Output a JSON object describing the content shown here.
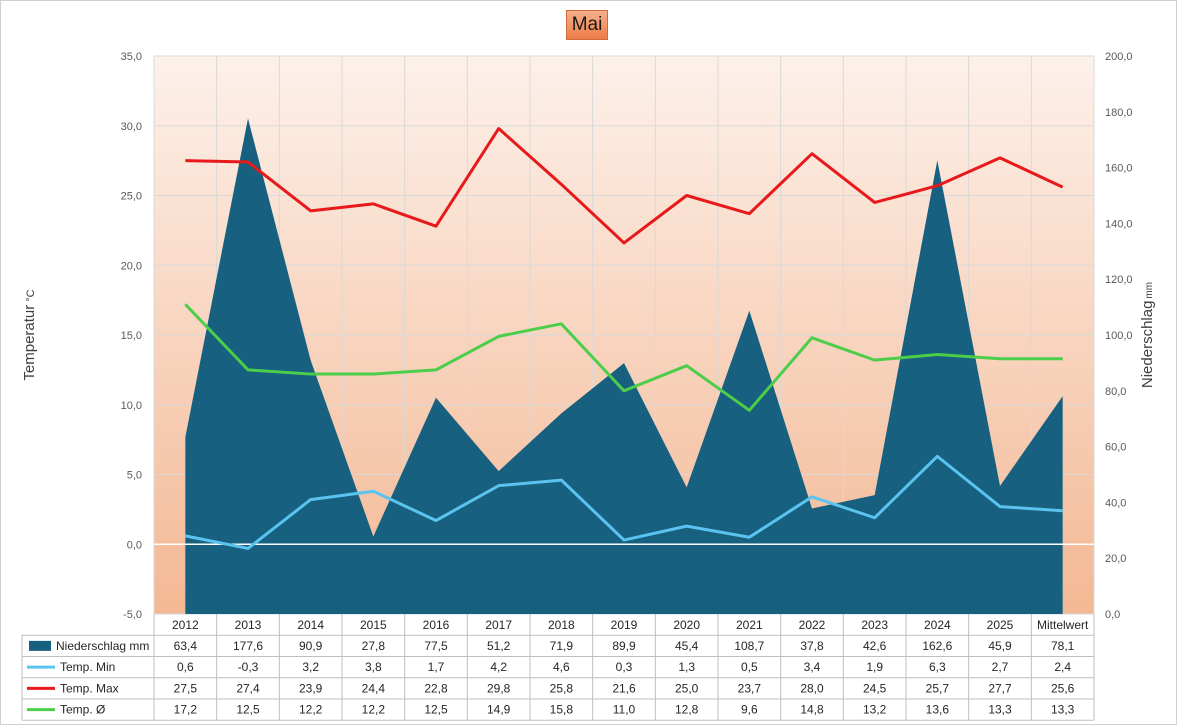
{
  "chart_data": {
    "type": "area+line",
    "title": "Mai",
    "categories": [
      "2012",
      "2013",
      "2014",
      "2015",
      "2016",
      "2017",
      "2018",
      "2019",
      "2020",
      "2021",
      "2022",
      "2023",
      "2024",
      "2025",
      "Mittelwert"
    ],
    "left_axis": {
      "label": "Temperatur",
      "unit": "°C",
      "ylim": [
        -5,
        35
      ],
      "ticks": [
        "-5,0",
        "0,0",
        "5,0",
        "10,0",
        "15,0",
        "20,0",
        "25,0",
        "30,0",
        "35,0"
      ]
    },
    "right_axis": {
      "label": "Niederschlag",
      "unit": "mm",
      "ylim": [
        0,
        200
      ],
      "ticks": [
        "0,0",
        "20,0",
        "40,0",
        "60,0",
        "80,0",
        "100,0",
        "120,0",
        "140,0",
        "160,0",
        "180,0",
        "200,0"
      ]
    },
    "grid": true,
    "series": [
      {
        "name": "Niederschlag mm",
        "type": "area",
        "axis": "right",
        "color": "#17607f",
        "values": [
          63.4,
          177.6,
          90.9,
          27.8,
          77.5,
          51.2,
          71.9,
          89.9,
          45.4,
          108.7,
          37.8,
          42.6,
          162.6,
          45.9,
          78.1
        ],
        "labels": [
          "63,4",
          "177,6",
          "90,9",
          "27,8",
          "77,5",
          "51,2",
          "71,9",
          "89,9",
          "45,4",
          "108,7",
          "37,8",
          "42,6",
          "162,6",
          "45,9",
          "78,1"
        ]
      },
      {
        "name": "Temp. Min",
        "type": "line",
        "axis": "left",
        "color": "#5bc3f0",
        "values": [
          0.6,
          -0.3,
          3.2,
          3.8,
          1.7,
          4.2,
          4.6,
          0.3,
          1.3,
          0.5,
          3.4,
          1.9,
          6.3,
          2.7,
          2.4
        ],
        "labels": [
          "0,6",
          "-0,3",
          "3,2",
          "3,8",
          "1,7",
          "4,2",
          "4,6",
          "0,3",
          "1,3",
          "0,5",
          "3,4",
          "1,9",
          "6,3",
          "2,7",
          "2,4"
        ]
      },
      {
        "name": "Temp. Max",
        "type": "line",
        "axis": "left",
        "color": "#e8191b",
        "values": [
          27.5,
          27.4,
          23.9,
          24.4,
          22.8,
          29.8,
          25.8,
          21.6,
          25.0,
          23.7,
          28.0,
          24.5,
          25.7,
          27.7,
          25.6
        ],
        "labels": [
          "27,5",
          "27,4",
          "23,9",
          "24,4",
          "22,8",
          "29,8",
          "25,8",
          "21,6",
          "25,0",
          "23,7",
          "28,0",
          "24,5",
          "25,7",
          "27,7",
          "25,6"
        ]
      },
      {
        "name": "Temp. Ø",
        "type": "line",
        "axis": "left",
        "color": "#4cce4a",
        "values": [
          17.2,
          12.5,
          12.2,
          12.2,
          12.5,
          14.9,
          15.8,
          11.0,
          12.8,
          9.6,
          14.8,
          13.2,
          13.6,
          13.3,
          13.3
        ],
        "labels": [
          "17,2",
          "12,5",
          "12,2",
          "12,2",
          "12,5",
          "14,9",
          "15,8",
          "11,0",
          "12,8",
          "9,6",
          "14,8",
          "13,2",
          "13,6",
          "13,3",
          "13,3"
        ]
      }
    ]
  }
}
